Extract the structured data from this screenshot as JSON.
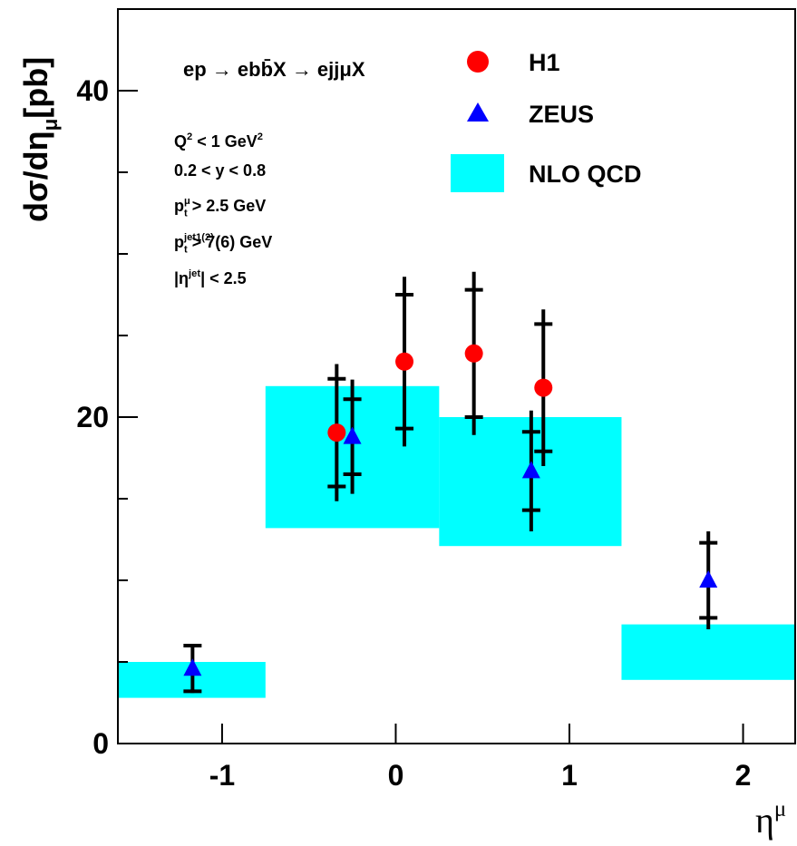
{
  "chart_data": {
    "type": "scatter",
    "y_label": [
      {
        "text": "dσ/dη"
      },
      {
        "sub": "μ"
      },
      {
        "text": "[pb]"
      }
    ],
    "x_label": [
      {
        "text": "η"
      },
      {
        "sup": "μ"
      }
    ],
    "xlim": [
      -1.6,
      2.3
    ],
    "ylim": [
      0,
      45
    ],
    "xticks": [
      -1,
      0,
      1,
      2
    ],
    "yticks": [
      0,
      20,
      40
    ],
    "yminorticks": [
      5,
      10,
      15,
      25,
      30,
      35
    ],
    "series": [
      {
        "name": "H1",
        "color": "#ff0000",
        "marker": "circle",
        "x": [
          -0.34,
          0.05,
          0.45,
          0.85
        ],
        "values": [
          19.05,
          23.4,
          23.9,
          21.8
        ],
        "stat_errors": [
          3.3,
          4.1,
          3.9,
          3.9
        ],
        "total_errors": [
          4.2,
          5.2,
          5.0,
          4.8
        ]
      },
      {
        "name": "ZEUS",
        "color": "#0000ff",
        "marker": "triangle",
        "x": [
          -1.17,
          -0.25,
          0.78,
          1.8
        ],
        "values": [
          4.6,
          18.8,
          16.7,
          10.0
        ],
        "stat_errors": [
          1.4,
          2.3,
          2.4,
          2.3
        ],
        "total_errors": [
          1.5,
          3.5,
          3.7,
          3.0
        ]
      },
      {
        "name": "NLO QCD",
        "color": "#00ffff",
        "marker": "band",
        "bins": [
          -1.6,
          -0.75,
          0.25,
          1.3,
          2.3
        ],
        "low": [
          2.8,
          13.2,
          12.1,
          3.9
        ],
        "high": [
          5.0,
          21.9,
          20.0,
          7.3
        ]
      }
    ],
    "annotations": [
      [
        {
          "text": "ep → eb"
        },
        {
          "text": "b̄"
        },
        {
          "text": "X → ejjμX"
        }
      ],
      [
        {
          "text": "Q"
        },
        {
          "sup": "2"
        },
        {
          "text": " < 1 GeV"
        },
        {
          "sup": "2"
        }
      ],
      [
        {
          "text": "0.2 < y < 0.8"
        }
      ],
      [
        {
          "text": "p"
        },
        {
          "sup": "μ",
          "sub": "t"
        },
        {
          "text": " > 2.5 GeV"
        }
      ],
      [
        {
          "text": "p"
        },
        {
          "sup": "jet1(2)",
          "sub": "t"
        },
        {
          "text": " > 7(6) GeV"
        }
      ],
      [
        {
          "text": "|η"
        },
        {
          "sup": "jet"
        },
        {
          "text": "| < 2.5"
        }
      ]
    ]
  }
}
